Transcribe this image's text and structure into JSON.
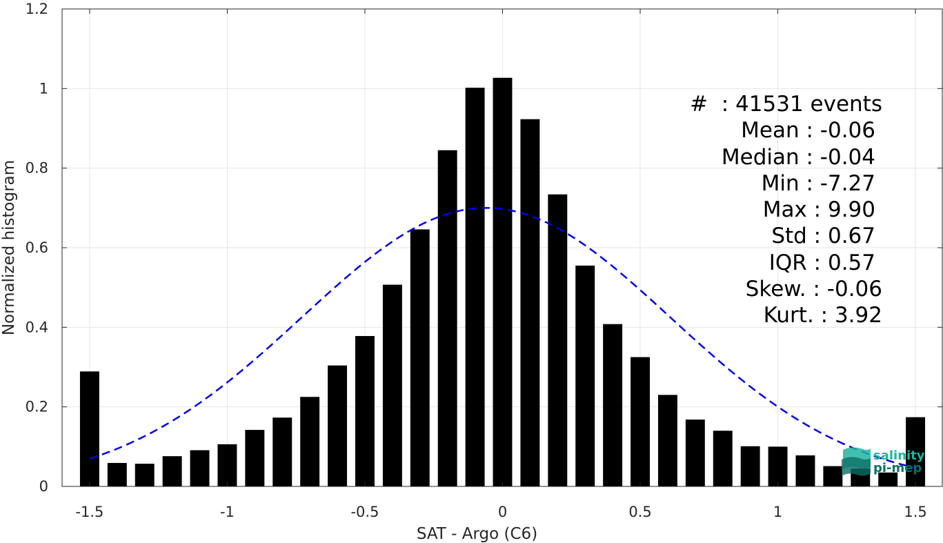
{
  "chart_data": {
    "type": "bar",
    "xlabel": "SAT - Argo (C6)",
    "ylabel": "Normalized histogram",
    "xlim": [
      -1.6,
      1.6
    ],
    "ylim": [
      0,
      1.2
    ],
    "xticks": [
      -1.5,
      -1,
      -0.5,
      0,
      0.5,
      1,
      1.5
    ],
    "xtick_labels": [
      "-1.5",
      "-1",
      "-0.5",
      "0",
      "0.5",
      "1",
      "1.5"
    ],
    "yticks": [
      0,
      0.2,
      0.4,
      0.6,
      0.8,
      1,
      1.2
    ],
    "ytick_labels": [
      "0",
      "0.2",
      "0.4",
      "0.6",
      "0.8",
      "1",
      "1.2"
    ],
    "grid": true,
    "bar_width": 0.07,
    "x": [
      -1.5,
      -1.4,
      -1.3,
      -1.2,
      -1.1,
      -1.0,
      -0.9,
      -0.8,
      -0.7,
      -0.6,
      -0.5,
      -0.4,
      -0.3,
      -0.2,
      -0.1,
      0.0,
      0.1,
      0.2,
      0.3,
      0.4,
      0.5,
      0.6,
      0.7,
      0.8,
      0.9,
      1.0,
      1.1,
      1.2,
      1.3,
      1.4,
      1.5
    ],
    "values": [
      0.289,
      0.059,
      0.057,
      0.076,
      0.091,
      0.106,
      0.142,
      0.173,
      0.225,
      0.304,
      0.378,
      0.507,
      0.646,
      0.845,
      1.002,
      1.027,
      0.923,
      0.734,
      0.555,
      0.408,
      0.325,
      0.23,
      0.168,
      0.14,
      0.101,
      0.1,
      0.078,
      0.051,
      0.045,
      0.035,
      0.174
    ],
    "bar_color": "#000000",
    "fit_curve": {
      "style": "dashed",
      "color": "#0000dd",
      "mean": -0.06,
      "std": 0.67,
      "peak": 0.7,
      "x_range": [
        -1.5,
        1.5
      ]
    },
    "annotations": [
      "#  : 41531 events",
      "Mean : -0.06",
      "Median : -0.04",
      "Min : -7.27",
      "Max : 9.90",
      "Std : 0.67",
      "IQR : 0.57",
      "Skew. : -0.06",
      "Kurt. : 3.92"
    ]
  },
  "logo": {
    "line1": "salinity",
    "line2": "pi-mep",
    "color1": "#1fb5a0",
    "color2": "#0d6e66"
  }
}
